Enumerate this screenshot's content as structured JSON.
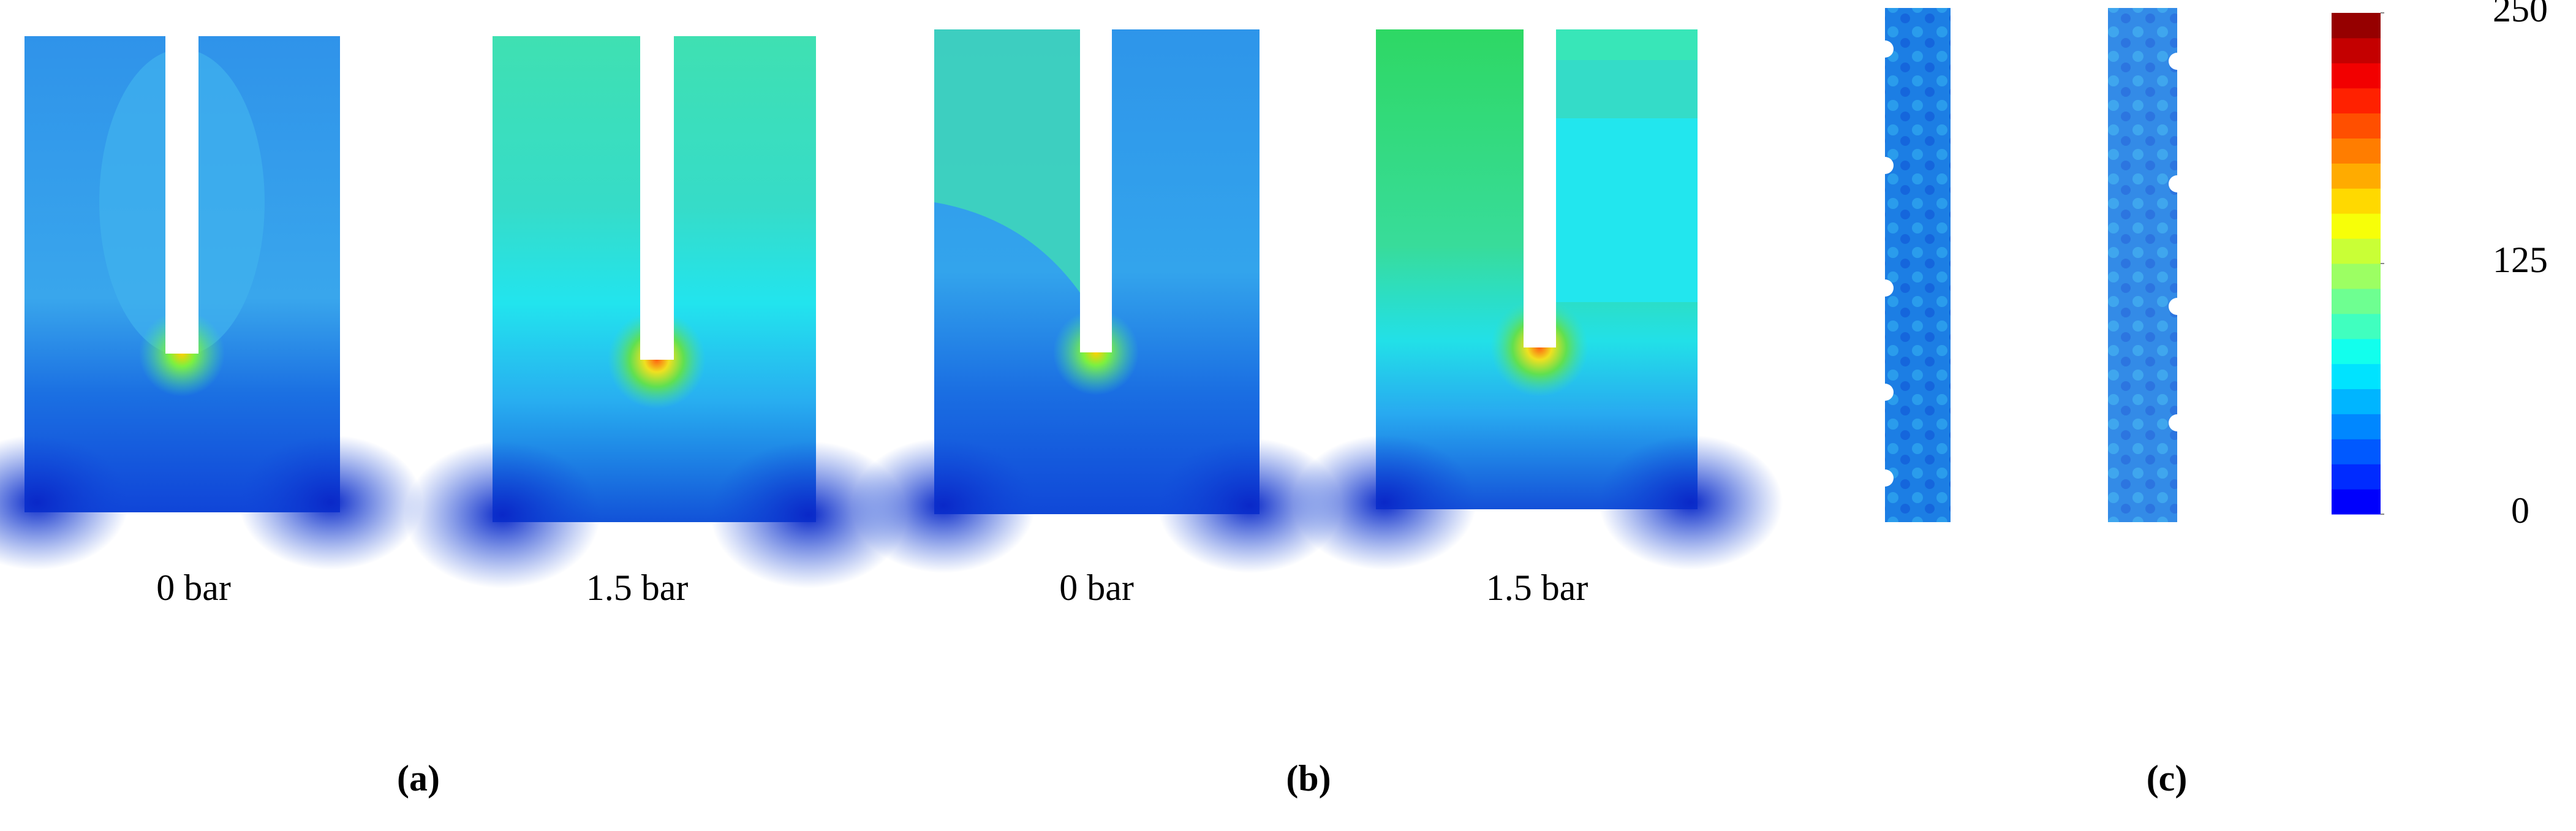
{
  "panels": [
    {
      "label": "(a)",
      "captions": [
        "0 bar",
        "1.5 bar"
      ]
    },
    {
      "label": "(b)",
      "captions": [
        "0 bar",
        "1.5 bar"
      ]
    },
    {
      "label": "(c)"
    }
  ],
  "colorbar": {
    "lim": [
      0,
      250
    ],
    "ticks": [
      0,
      125,
      250
    ]
  }
}
